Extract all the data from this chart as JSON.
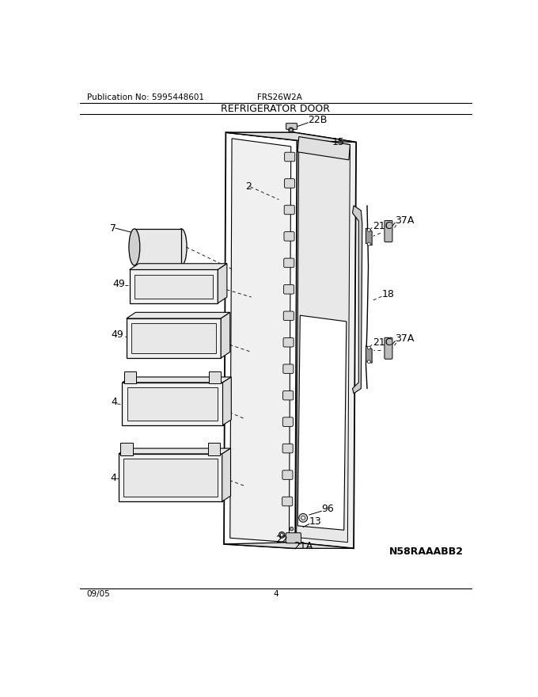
{
  "title": "REFRIGERATOR DOOR",
  "pub_no": "Publication No: 5995448601",
  "model": "FRS26W2A",
  "diagram_id": "N58RAAABB2",
  "date": "09/05",
  "page": "4",
  "background": "#ffffff",
  "lc": "#000000"
}
